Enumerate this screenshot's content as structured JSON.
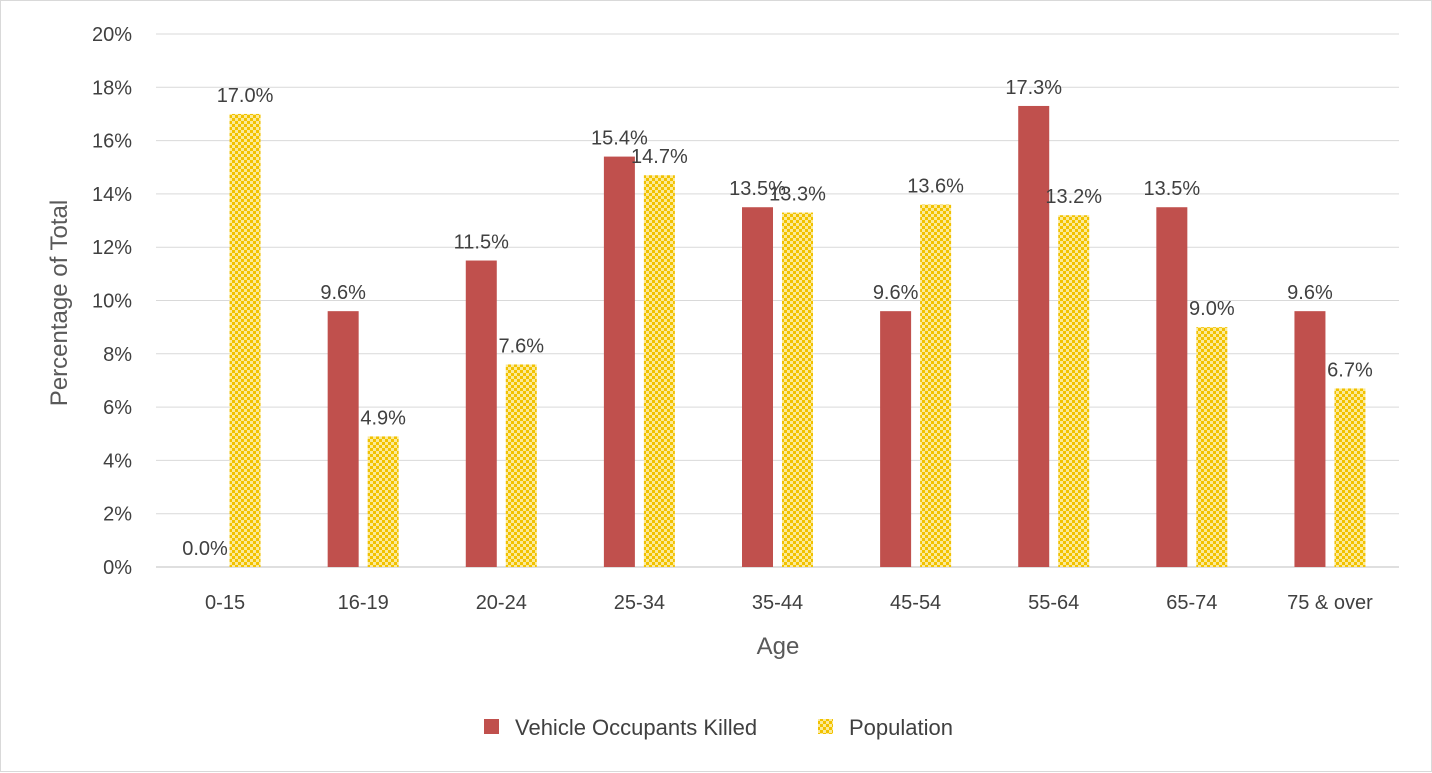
{
  "chart_data": {
    "type": "bar",
    "title": "",
    "xlabel": "Age",
    "ylabel": "Percentage of Total",
    "ylim": [
      0,
      20
    ],
    "ytick_step": 2,
    "ytick_labels": [
      "0%",
      "2%",
      "4%",
      "6%",
      "8%",
      "10%",
      "12%",
      "14%",
      "16%",
      "18%",
      "20%"
    ],
    "grid": true,
    "legend_position": "bottom",
    "categories": [
      "0-15",
      "16-19",
      "20-24",
      "25-34",
      "35-44",
      "45-54",
      "55-64",
      "65-74",
      "75 & over"
    ],
    "series": [
      {
        "name": "Vehicle Occupants Killed",
        "color": "#C0504D",
        "pattern": "solid",
        "values": [
          0.0,
          9.6,
          11.5,
          15.4,
          13.5,
          9.6,
          17.3,
          13.5,
          9.6
        ],
        "labels": [
          "0.0%",
          "9.6%",
          "11.5%",
          "15.4%",
          "13.5%",
          "9.6%",
          "17.3%",
          "13.5%",
          "9.6%"
        ]
      },
      {
        "name": "Population",
        "color": "#F5D02A",
        "pattern": "checker",
        "values": [
          17.0,
          4.9,
          7.6,
          14.7,
          13.3,
          13.6,
          13.2,
          9.0,
          6.7
        ],
        "labels": [
          "17.0%",
          "4.9%",
          "7.6%",
          "14.7%",
          "13.3%",
          "13.6%",
          "13.2%",
          "9.0%",
          "6.7%"
        ]
      }
    ]
  }
}
